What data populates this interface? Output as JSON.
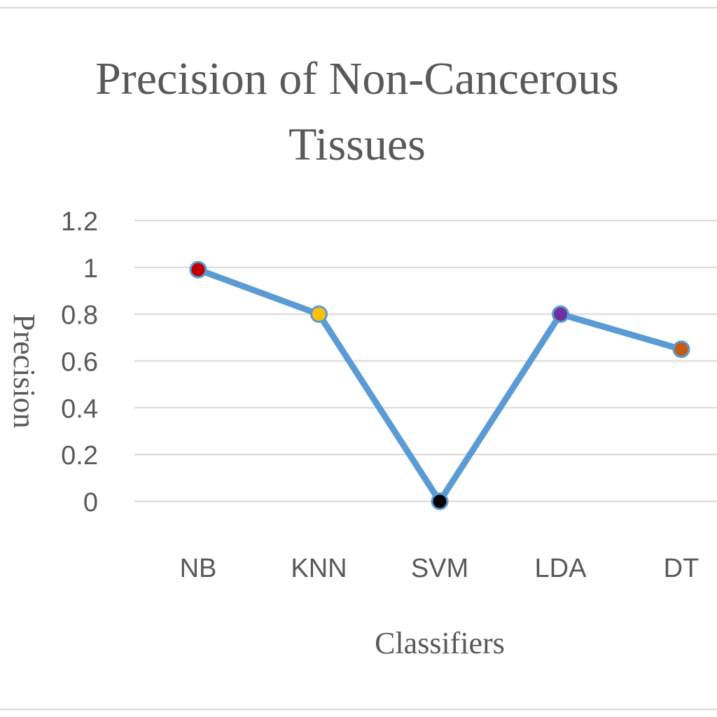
{
  "chart_data": {
    "type": "line",
    "title_lines": [
      "Precision of Non-Cancerous",
      "Tissues"
    ],
    "xlabel": "Classifiers",
    "ylabel": "Precision",
    "categories": [
      "NB",
      "KNN",
      "SVM",
      "LDA",
      "DT"
    ],
    "series": [
      {
        "values": [
          0.99,
          0.8,
          0.0,
          0.8,
          0.65
        ],
        "color": "#5b9bd5",
        "marker_colors": [
          "#c00000",
          "#ffc000",
          "#000000",
          "#7030a0",
          "#c55a11"
        ]
      }
    ],
    "ylim": [
      0,
      1.2
    ],
    "yticks": [
      0,
      0.2,
      0.4,
      0.6,
      0.8,
      1,
      1.2
    ],
    "ytick_labels": [
      "0",
      "0.2",
      "0.4",
      "0.6",
      "0.8",
      "1",
      "1.2"
    ],
    "grid": true,
    "legend": "none"
  }
}
